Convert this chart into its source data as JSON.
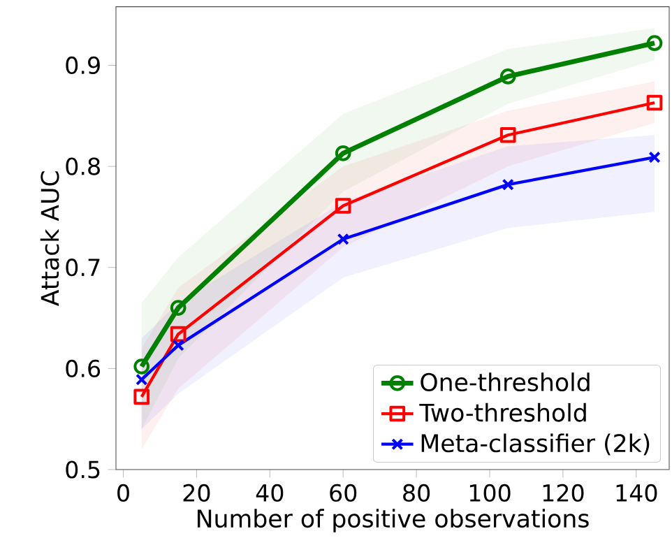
{
  "chart_data": {
    "type": "line",
    "xlabel": "Number of positive observations",
    "ylabel": "Attack AUC",
    "x": [
      5,
      15,
      60,
      105,
      145
    ],
    "series": [
      {
        "name": "One-threshold",
        "color": "#008000",
        "marker": "circle",
        "values": [
          0.602,
          0.66,
          0.813,
          0.889,
          0.922
        ],
        "lower": [
          0.54,
          0.61,
          0.775,
          0.862,
          0.905
        ],
        "upper": [
          0.665,
          0.71,
          0.852,
          0.916,
          0.937
        ]
      },
      {
        "name": "Two-threshold",
        "color": "#ff0000",
        "marker": "square",
        "values": [
          0.572,
          0.634,
          0.761,
          0.831,
          0.863
        ],
        "lower": [
          0.52,
          0.58,
          0.72,
          0.8,
          0.843
        ],
        "upper": [
          0.62,
          0.68,
          0.8,
          0.855,
          0.884
        ]
      },
      {
        "name": "Meta-classifier (2k)",
        "color": "#0000ff",
        "marker": "cross",
        "values": [
          0.589,
          0.623,
          0.728,
          0.782,
          0.809
        ],
        "lower": [
          0.54,
          0.575,
          0.69,
          0.739,
          0.755
        ],
        "upper": [
          0.63,
          0.665,
          0.765,
          0.82,
          0.831
        ]
      }
    ],
    "xlim": [
      -2,
      149
    ],
    "ylim": [
      0.5,
      0.958
    ],
    "xticks": [
      0,
      20,
      40,
      60,
      80,
      100,
      120,
      140
    ],
    "yticks": [
      {
        "value": 0.5,
        "label": "0.5"
      },
      {
        "value": 0.6,
        "label": "0.6"
      },
      {
        "value": 0.7,
        "label": "0.7"
      },
      {
        "value": 0.8,
        "label": "0.8"
      },
      {
        "value": 0.9,
        "label": "0.9"
      }
    ],
    "legend": "bottom right",
    "grid": false,
    "line_style": "solid"
  }
}
